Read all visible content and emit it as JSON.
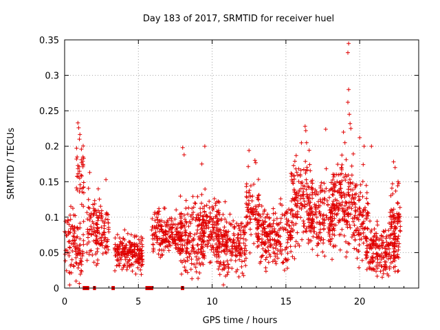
{
  "chart_data": {
    "type": "scatter",
    "title": "Day 183 of 2017, SRMTID for receiver huel",
    "xlabel": "GPS time / hours",
    "ylabel": "SRMTID / TECUs",
    "xlim": [
      0,
      24
    ],
    "ylim": [
      0,
      0.35
    ],
    "x_ticks": [
      0,
      5,
      10,
      15,
      20
    ],
    "x_tick_labels": [
      "0",
      "5",
      "10",
      "15",
      "20"
    ],
    "y_ticks": [
      0,
      0.05,
      0.1,
      0.15,
      0.2,
      0.25,
      0.3,
      0.35
    ],
    "y_tick_labels": [
      "0",
      "0.05",
      "0.1",
      "0.15",
      "0.2",
      "0.25",
      "0.3",
      "0.35"
    ],
    "grid": true,
    "marker": "plus",
    "series_color": "#e00000",
    "clusters": [
      {
        "x_start": 0.0,
        "x_end": 1.3,
        "y_mean": 0.06,
        "y_spread": 0.04,
        "n": 110
      },
      {
        "x_start": 0.8,
        "x_end": 1.3,
        "y_mean": 0.16,
        "y_spread": 0.04,
        "n": 35
      },
      {
        "x_start": 1.5,
        "x_end": 2.3,
        "y_mean": 0.09,
        "y_spread": 0.04,
        "n": 70
      },
      {
        "x_start": 2.1,
        "x_end": 3.0,
        "y_mean": 0.08,
        "y_spread": 0.035,
        "n": 70
      },
      {
        "x_start": 3.4,
        "x_end": 5.3,
        "y_mean": 0.05,
        "y_spread": 0.02,
        "n": 200
      },
      {
        "x_start": 5.9,
        "x_end": 8.0,
        "y_mean": 0.075,
        "y_spread": 0.025,
        "n": 200
      },
      {
        "x_start": 7.8,
        "x_end": 9.5,
        "y_mean": 0.07,
        "y_spread": 0.04,
        "n": 150
      },
      {
        "x_start": 9.0,
        "x_end": 10.5,
        "y_mean": 0.085,
        "y_spread": 0.04,
        "n": 150
      },
      {
        "x_start": 10.3,
        "x_end": 12.3,
        "y_mean": 0.06,
        "y_spread": 0.035,
        "n": 200
      },
      {
        "x_start": 12.3,
        "x_end": 13.2,
        "y_mean": 0.11,
        "y_spread": 0.04,
        "n": 80
      },
      {
        "x_start": 13.0,
        "x_end": 15.5,
        "y_mean": 0.075,
        "y_spread": 0.035,
        "n": 220
      },
      {
        "x_start": 15.3,
        "x_end": 16.8,
        "y_mean": 0.12,
        "y_spread": 0.05,
        "n": 150
      },
      {
        "x_start": 16.5,
        "x_end": 18.3,
        "y_mean": 0.1,
        "y_spread": 0.04,
        "n": 170
      },
      {
        "x_start": 18.0,
        "x_end": 19.6,
        "y_mean": 0.12,
        "y_spread": 0.05,
        "n": 170
      },
      {
        "x_start": 19.6,
        "x_end": 20.6,
        "y_mean": 0.1,
        "y_spread": 0.045,
        "n": 100
      },
      {
        "x_start": 20.4,
        "x_end": 22.7,
        "y_mean": 0.055,
        "y_spread": 0.03,
        "n": 220
      },
      {
        "x_start": 22.1,
        "x_end": 22.8,
        "y_mean": 0.1,
        "y_spread": 0.035,
        "n": 60
      }
    ],
    "outliers": [
      {
        "x": 0.9,
        "y": 0.233
      },
      {
        "x": 0.95,
        "y": 0.226
      },
      {
        "x": 1.0,
        "y": 0.21
      },
      {
        "x": 0.85,
        "y": 0.185
      },
      {
        "x": 1.7,
        "y": 0.163
      },
      {
        "x": 2.8,
        "y": 0.153
      },
      {
        "x": 8.0,
        "y": 0.198
      },
      {
        "x": 8.1,
        "y": 0.188
      },
      {
        "x": 9.5,
        "y": 0.2
      },
      {
        "x": 9.3,
        "y": 0.175
      },
      {
        "x": 12.5,
        "y": 0.194
      },
      {
        "x": 12.9,
        "y": 0.18
      },
      {
        "x": 16.3,
        "y": 0.228
      },
      {
        "x": 16.35,
        "y": 0.222
      },
      {
        "x": 16.4,
        "y": 0.205
      },
      {
        "x": 17.7,
        "y": 0.224
      },
      {
        "x": 18.9,
        "y": 0.22
      },
      {
        "x": 19.0,
        "y": 0.205
      },
      {
        "x": 19.25,
        "y": 0.345
      },
      {
        "x": 19.2,
        "y": 0.332
      },
      {
        "x": 19.25,
        "y": 0.28
      },
      {
        "x": 19.2,
        "y": 0.262
      },
      {
        "x": 19.3,
        "y": 0.245
      },
      {
        "x": 19.35,
        "y": 0.232
      },
      {
        "x": 19.4,
        "y": 0.225
      },
      {
        "x": 20.0,
        "y": 0.212
      },
      {
        "x": 20.3,
        "y": 0.2
      },
      {
        "x": 20.8,
        "y": 0.2
      },
      {
        "x": 22.3,
        "y": 0.178
      },
      {
        "x": 22.4,
        "y": 0.17
      },
      {
        "x": 22.6,
        "y": 0.15
      }
    ],
    "zero_segments": [
      {
        "x_start": 1.25,
        "x_end": 1.65
      },
      {
        "x_start": 1.95,
        "x_end": 2.1
      },
      {
        "x_start": 3.2,
        "x_end": 3.4
      },
      {
        "x_start": 5.5,
        "x_end": 6.0
      },
      {
        "x_start": 7.9,
        "x_end": 8.1
      }
    ]
  }
}
